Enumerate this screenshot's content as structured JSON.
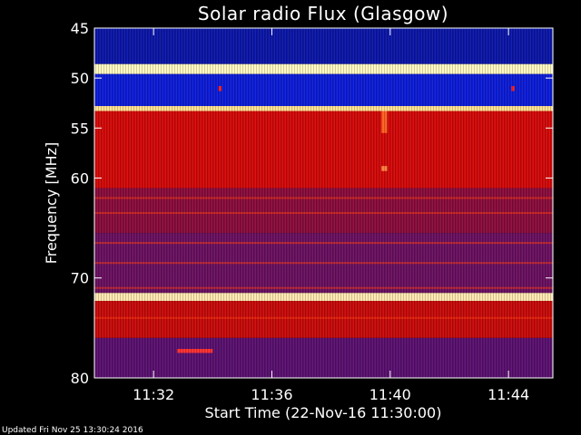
{
  "chart_data": {
    "type": "heatmap",
    "title": "Solar radio Flux (Glasgow)",
    "xlabel": "Start Time (22-Nov-16 11:30:00)",
    "ylabel": "Frequency [MHz]",
    "x_range_minutes": [
      0,
      15.5
    ],
    "x_ticks": [
      {
        "minute": 2,
        "label": "11:32"
      },
      {
        "minute": 6,
        "label": "11:36"
      },
      {
        "minute": 10,
        "label": "11:40"
      },
      {
        "minute": 14,
        "label": "11:44"
      }
    ],
    "y_range_mhz": [
      45,
      80
    ],
    "y_ticks": [
      {
        "mhz": 45,
        "label": "45"
      },
      {
        "mhz": 50,
        "label": "50"
      },
      {
        "mhz": 55,
        "label": "55"
      },
      {
        "mhz": 60,
        "label": "60"
      },
      {
        "mhz": 70,
        "label": "70"
      },
      {
        "mhz": 80,
        "label": "80"
      }
    ],
    "colormap": [
      "#000080",
      "#1a1aff",
      "#8000c0",
      "#cc0000",
      "#ff2a00",
      "#ff9900",
      "#ffffaa"
    ],
    "bands": [
      {
        "from_mhz": 45.0,
        "to_mhz": 48.6,
        "color": "#0b16a8"
      },
      {
        "from_mhz": 48.6,
        "to_mhz": 49.6,
        "color": "#fff8c0"
      },
      {
        "from_mhz": 49.6,
        "to_mhz": 52.8,
        "color": "#0c1cd8"
      },
      {
        "from_mhz": 52.8,
        "to_mhz": 53.3,
        "color": "#ffe090"
      },
      {
        "from_mhz": 53.3,
        "to_mhz": 61.0,
        "color": "#d40808"
      },
      {
        "from_mhz": 61.0,
        "to_mhz": 65.5,
        "color": "#8a0c3c"
      },
      {
        "from_mhz": 65.5,
        "to_mhz": 71.5,
        "color": "#6a1060"
      },
      {
        "from_mhz": 71.5,
        "to_mhz": 72.3,
        "color": "#ffe8b0"
      },
      {
        "from_mhz": 72.3,
        "to_mhz": 76.0,
        "color": "#c80a0a"
      },
      {
        "from_mhz": 76.0,
        "to_mhz": 80.0,
        "color": "#5a1070"
      }
    ],
    "interference_lines_mhz": [
      62.0,
      63.5,
      66.5,
      68.5,
      71.0,
      74.0
    ],
    "features": [
      {
        "minute_from": 9.7,
        "minute_to": 9.9,
        "mhz_from": 53.3,
        "mhz_to": 55.5,
        "color": "#ff6020"
      },
      {
        "minute_from": 9.7,
        "minute_to": 9.9,
        "mhz_from": 58.8,
        "mhz_to": 59.3,
        "color": "#ff8040"
      },
      {
        "minute_from": 2.8,
        "minute_to": 4.0,
        "mhz_from": 77.1,
        "mhz_to": 77.5,
        "color": "#ff3030"
      },
      {
        "minute_from": 4.2,
        "minute_to": 4.3,
        "mhz_from": 50.8,
        "mhz_to": 51.3,
        "color": "#ff2020"
      },
      {
        "minute_from": 14.1,
        "minute_to": 14.2,
        "mhz_from": 50.8,
        "mhz_to": 51.3,
        "color": "#ff2020"
      }
    ]
  },
  "footer": {
    "updated_text": "Updated Fri Nov 25 13:30:24 2016"
  }
}
